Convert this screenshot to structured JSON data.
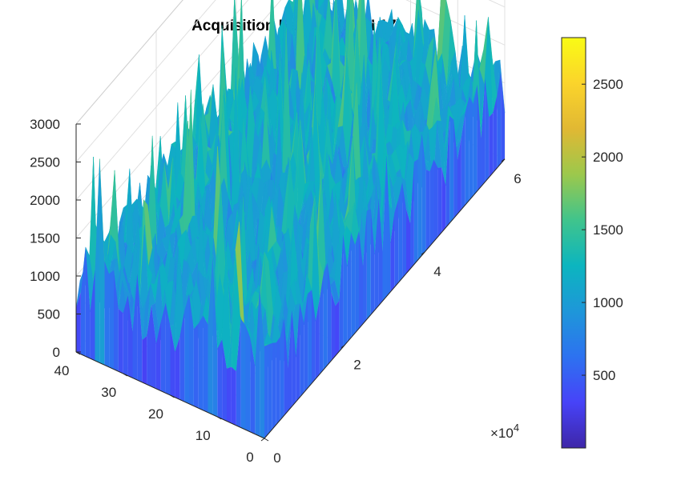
{
  "chart_data": {
    "type": "surface",
    "title": "Acquisition Results (PRN 17)",
    "xlabel": "",
    "ylabel": "",
    "zlabel": "",
    "x_axis": {
      "lim": [
        0,
        60000
      ],
      "tick_labels": [
        "0",
        "2",
        "4",
        "6"
      ],
      "tick_values": [
        0,
        20000,
        40000,
        60000
      ],
      "exponent_label": "×10",
      "exponent": "4"
    },
    "y_axis": {
      "lim": [
        0,
        40
      ],
      "tick_labels": [
        "0",
        "10",
        "20",
        "30",
        "40"
      ],
      "tick_values": [
        0,
        10,
        20,
        30,
        40
      ]
    },
    "z_axis": {
      "lim": [
        0,
        3000
      ],
      "tick_labels": [
        "0",
        "500",
        "1000",
        "1500",
        "2000",
        "2500",
        "3000"
      ],
      "tick_values": [
        0,
        500,
        1000,
        1500,
        2000,
        2500,
        3000
      ]
    },
    "colorbar": {
      "lim": [
        0,
        2820
      ],
      "tick_labels": [
        "500",
        "1000",
        "1500",
        "2000",
        "2500"
      ],
      "tick_values": [
        500,
        1000,
        1500,
        2000,
        2500
      ],
      "colormap": "parula"
    },
    "surface_summary": {
      "noise_floor_approx": 1000,
      "peak_approx": 2800
    },
    "grid": true,
    "view": "3d"
  },
  "colors": {
    "parula": [
      "#3e26a8",
      "#4743f8",
      "#2d72f0",
      "#1e97d9",
      "#0cb5bf",
      "#40c48c",
      "#9cc84c",
      "#e1b833",
      "#fbd42b",
      "#f9fb15"
    ],
    "axis": "#262626",
    "grid": "#e0e0e0"
  }
}
